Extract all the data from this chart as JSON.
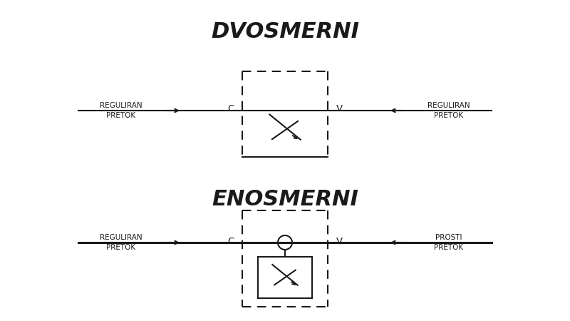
{
  "title1": "DVOSMERNI",
  "title2": "ENOSMERNI",
  "label_reguliran": "REGULIRAN\nPRETOK",
  "label_prosti": "PROSTI\nPRETOK",
  "label_c": "C",
  "label_v": "V",
  "bg_color": "#ffffff",
  "line_color": "#1a1a1a",
  "title_fontsize": 22,
  "label_fontsize": 7.5,
  "cv_fontsize": 9.5
}
